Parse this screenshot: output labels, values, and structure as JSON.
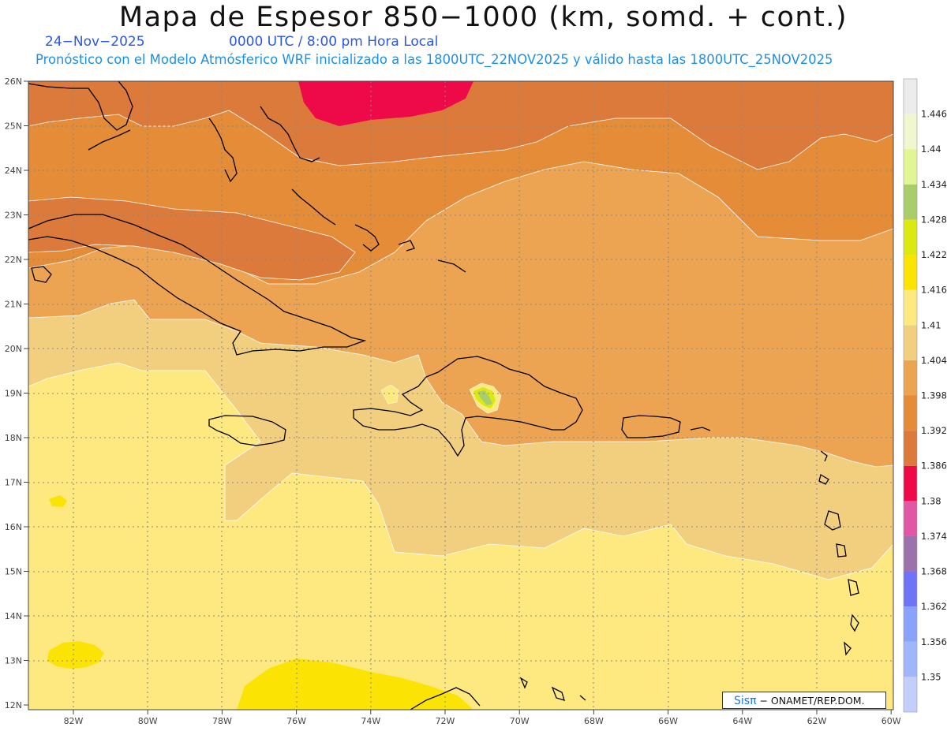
{
  "title": "Mapa de Espesor 850−1000 (km, somd. + cont.)",
  "date": "24−Nov−2025",
  "valid_time": "0000 UTC / 8:00 pm Hora Local",
  "init_line": "Pronóstico con el Modelo Atmósferico WRF inicializado a las 1800UTC_22NOV2025 y válido hasta las  1800UTC_25NOV2025",
  "lat_labels": [
    "26N",
    "25N",
    "24N",
    "23N",
    "22N",
    "21N",
    "20N",
    "19N",
    "18N",
    "17N",
    "16N",
    "15N",
    "14N",
    "13N",
    "12N"
  ],
  "lon_labels": [
    "82W",
    "80W",
    "78W",
    "76W",
    "74W",
    "72W",
    "70W",
    "68W",
    "66W",
    "64W",
    "62W",
    "60W"
  ],
  "colorbar": {
    "levels": [
      "1.35",
      "1.356",
      "1.362",
      "1.368",
      "1.374",
      "1.38",
      "1.386",
      "1.392",
      "1.398",
      "1.404",
      "1.41",
      "1.416",
      "1.422",
      "1.428",
      "1.434",
      "1.44",
      "1.446"
    ],
    "colors": [
      "#c3cffa",
      "#9fb6fb",
      "#8aa3fa",
      "#6f73f8",
      "#9b72ac",
      "#e256a6",
      "#ee0a48",
      "#db7a3a",
      "#e58c38",
      "#eca452",
      "#f2cf7f",
      "#fde97f",
      "#fbe304",
      "#dbe811",
      "#a8cd6a",
      "#e2f595",
      "#f0f6ce",
      "#ececec"
    ]
  },
  "credit": {
    "logo": "Sisπ",
    "text": " − ONAMET/REP.DOM."
  }
}
